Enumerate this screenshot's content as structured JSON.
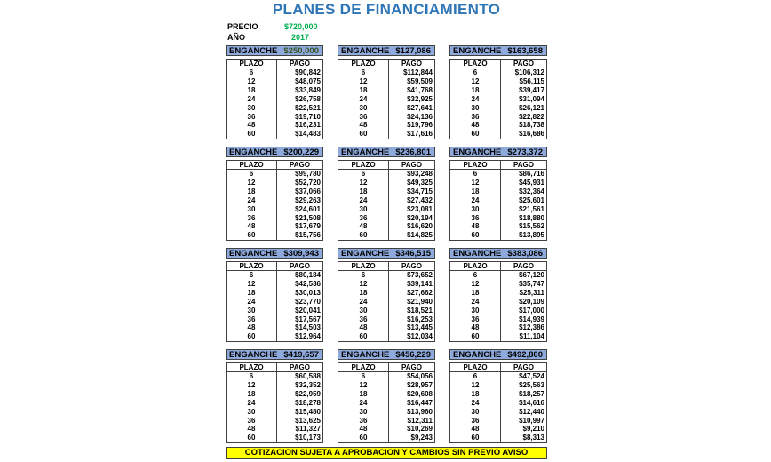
{
  "title": "PLANES DE FINANCIAMIENTO",
  "precio_label": "PRECIO",
  "precio": "$720,000",
  "anio_label": "AÑO",
  "anio": "2017",
  "enganche_label": "ENGANCHE",
  "col_plazo": "PLAZO",
  "col_pago": "PAGO",
  "plazos": [
    "6",
    "12",
    "18",
    "24",
    "30",
    "36",
    "48",
    "60"
  ],
  "plans": [
    {
      "enganche": "$250,000",
      "pagos": [
        "$90,842",
        "$48,075",
        "$33,849",
        "$26,758",
        "$22,521",
        "$19,710",
        "$16,231",
        "$14,483"
      ]
    },
    {
      "enganche": "$127,086",
      "pagos": [
        "$112,844",
        "$59,509",
        "$41,768",
        "$32,925",
        "$27,641",
        "$24,136",
        "$19,796",
        "$17,616"
      ]
    },
    {
      "enganche": "$163,658",
      "pagos": [
        "$106,312",
        "$56,115",
        "$39,417",
        "$31,094",
        "$26,121",
        "$22,822",
        "$18,738",
        "$16,686"
      ]
    },
    {
      "enganche": "$200,229",
      "pagos": [
        "$99,780",
        "$52,720",
        "$37,066",
        "$29,263",
        "$24,601",
        "$21,508",
        "$17,679",
        "$15,756"
      ]
    },
    {
      "enganche": "$236,801",
      "pagos": [
        "$93,248",
        "$49,325",
        "$34,715",
        "$27,432",
        "$23,081",
        "$20,194",
        "$16,620",
        "$14,825"
      ]
    },
    {
      "enganche": "$273,372",
      "pagos": [
        "$86,716",
        "$45,931",
        "$32,364",
        "$25,601",
        "$21,561",
        "$18,880",
        "$15,562",
        "$13,895"
      ]
    },
    {
      "enganche": "$309,943",
      "pagos": [
        "$80,184",
        "$42,536",
        "$30,013",
        "$23,770",
        "$20,041",
        "$17,567",
        "$14,503",
        "$12,964"
      ]
    },
    {
      "enganche": "$346,515",
      "pagos": [
        "$73,652",
        "$39,141",
        "$27,662",
        "$21,940",
        "$18,521",
        "$16,253",
        "$13,445",
        "$12,034"
      ]
    },
    {
      "enganche": "$383,086",
      "pagos": [
        "$67,120",
        "$35,747",
        "$25,311",
        "$20,109",
        "$17,000",
        "$14,939",
        "$12,386",
        "$11,104"
      ]
    },
    {
      "enganche": "$419,657",
      "pagos": [
        "$60,588",
        "$32,352",
        "$22,959",
        "$18,278",
        "$15,480",
        "$13,625",
        "$11,327",
        "$10,173"
      ]
    },
    {
      "enganche": "$456,229",
      "pagos": [
        "$54,056",
        "$28,957",
        "$20,608",
        "$16,447",
        "$13,960",
        "$12,311",
        "$10,269",
        "$9,243"
      ]
    },
    {
      "enganche": "$492,800",
      "pagos": [
        "$47,524",
        "$25,563",
        "$18,257",
        "$14,616",
        "$12,440",
        "$10,997",
        "$9,210",
        "$8,313"
      ]
    }
  ],
  "footer": "COTIZACION SUJETA A APROBACION Y CAMBIOS SIN PREVIO AVISO",
  "colors": {
    "title": "#2E75B6",
    "header_fill": "#8EA9DB",
    "green": "#00B050",
    "footer_fill": "#FFFF00"
  }
}
